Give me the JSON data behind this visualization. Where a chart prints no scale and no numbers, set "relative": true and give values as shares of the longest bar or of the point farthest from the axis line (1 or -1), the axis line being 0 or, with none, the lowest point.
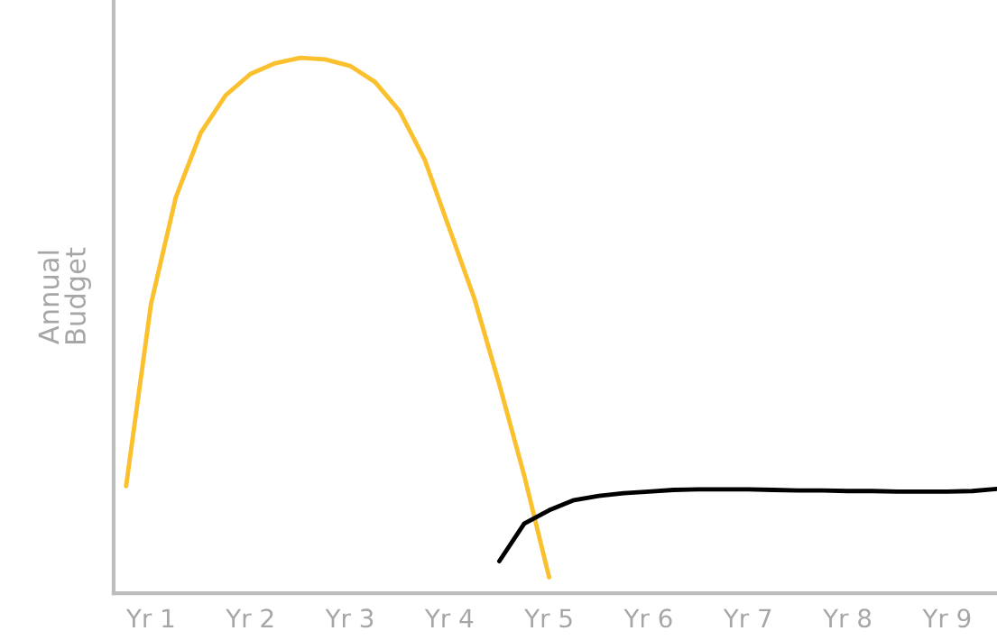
{
  "chart_data": {
    "type": "line",
    "relative": true,
    "ylabel": "Annual\nBudget",
    "categories": [
      null,
      "Yr 1",
      null,
      null,
      null,
      "Yr 2",
      null,
      null,
      null,
      "Yr 3",
      null,
      null,
      null,
      "Yr 4",
      null,
      null,
      null,
      "Yr 5",
      null,
      null,
      null,
      "Yr 6",
      null,
      null,
      null,
      "Yr 7",
      null,
      null,
      null,
      "Yr 8",
      null,
      null,
      null,
      "Yr 9",
      null,
      null
    ],
    "grid": false,
    "legend": false,
    "marker": "none",
    "line_style": "solid",
    "series": [
      {
        "color": "#fbc02d",
        "values": [
          0.2,
          0.54,
          0.74,
          0.86,
          0.93,
          0.97,
          0.99,
          1.0,
          0.997,
          0.985,
          0.955,
          0.9,
          0.81,
          0.68,
          0.55,
          0.39,
          0.22,
          0.03,
          null,
          null,
          null,
          null,
          null,
          null,
          null,
          null,
          null,
          null,
          null,
          null,
          null,
          null,
          null,
          null,
          null,
          null
        ]
      },
      {
        "color": "#000000",
        "values": [
          null,
          null,
          null,
          null,
          null,
          null,
          null,
          null,
          null,
          null,
          null,
          null,
          null,
          null,
          null,
          0.06,
          0.13,
          0.155,
          0.174,
          0.182,
          0.187,
          0.19,
          0.193,
          0.194,
          0.194,
          0.194,
          0.193,
          0.192,
          0.192,
          0.191,
          0.191,
          0.19,
          0.19,
          0.19,
          0.191,
          0.195
        ]
      }
    ]
  }
}
